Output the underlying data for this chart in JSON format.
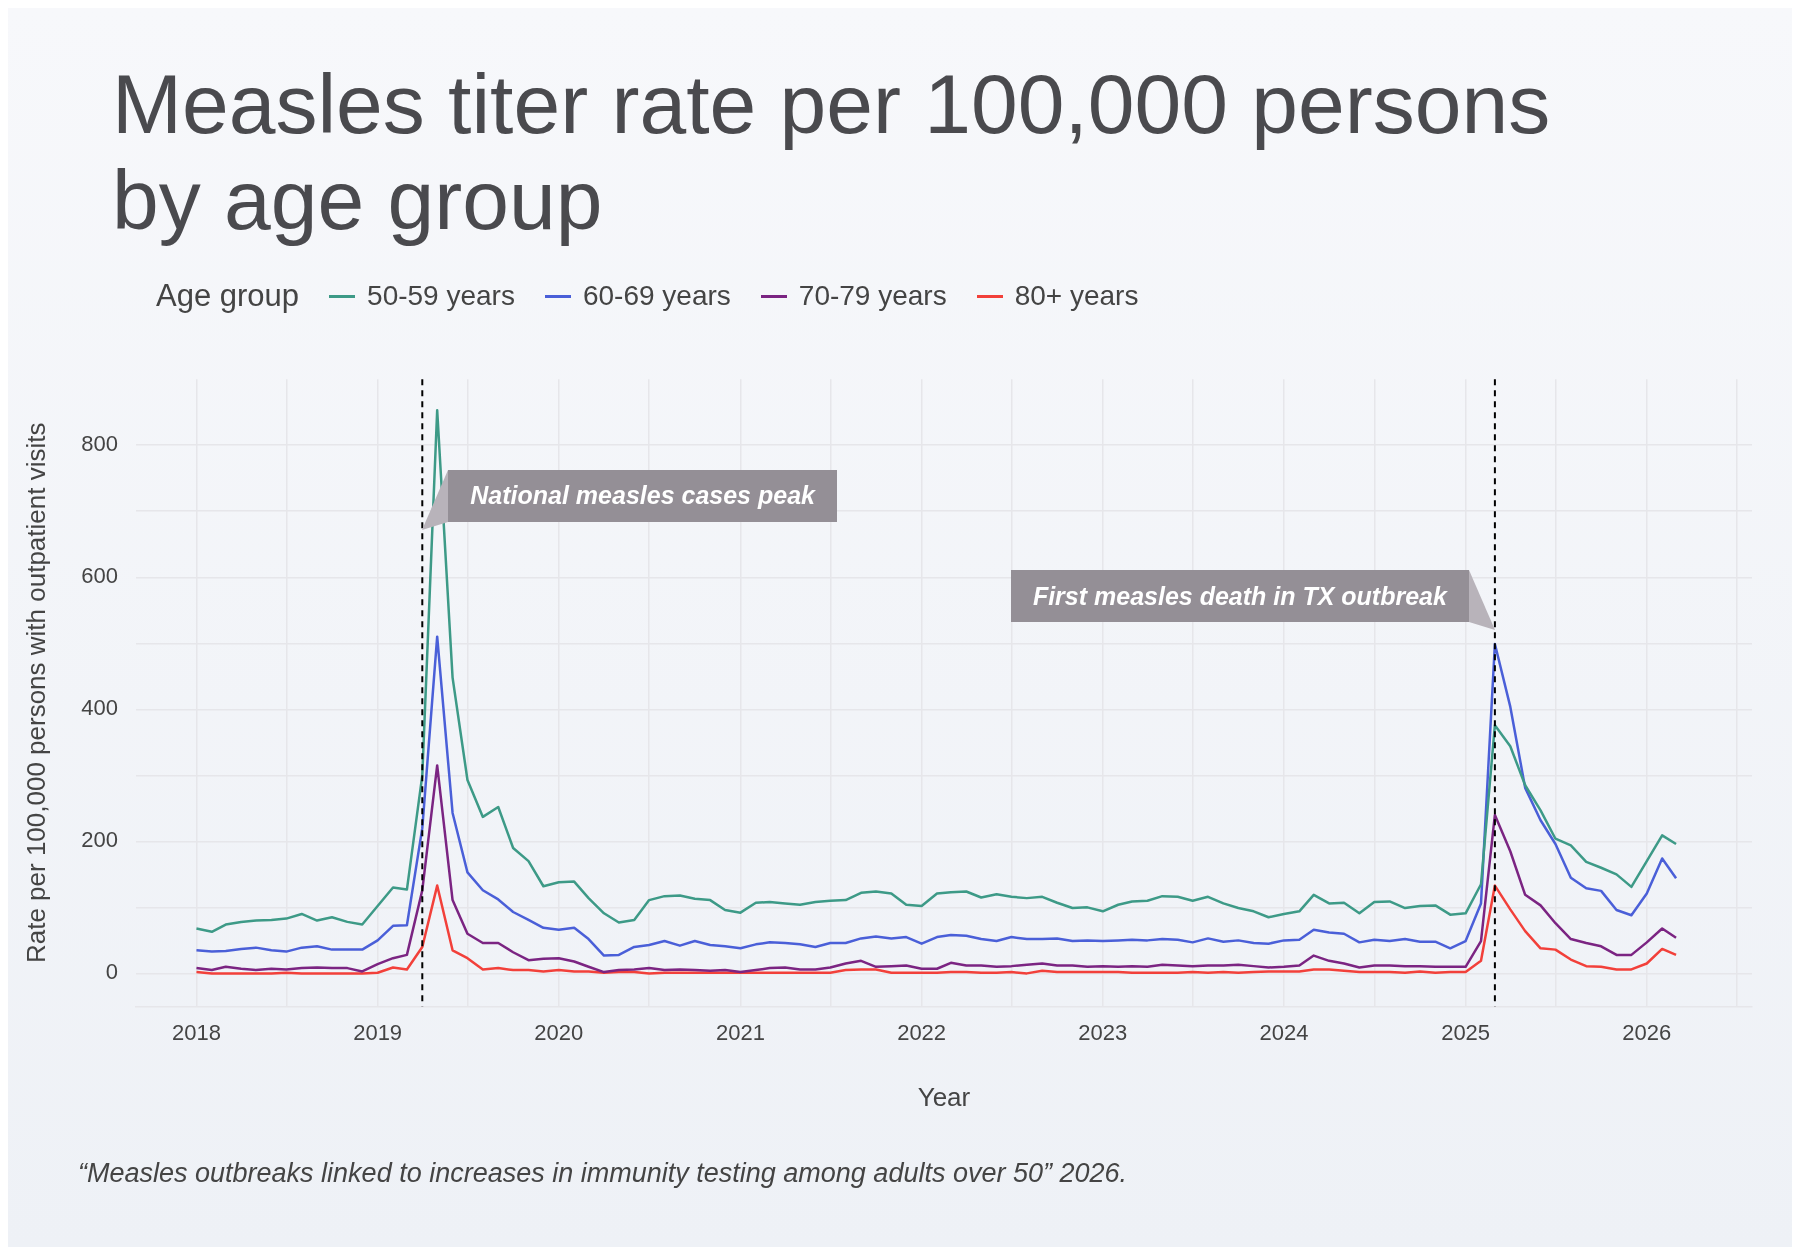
{
  "chart_data": {
    "type": "line",
    "title": "Measles titer rate per 100,000 persons by age group",
    "xlabel": "Year",
    "ylabel": "Rate per 100,000 persons with outpatient visits",
    "legend_title": "Age group",
    "legend": "top left",
    "grid": true,
    "line_style": "solid",
    "marker": "none",
    "x": [
      "2018-01",
      "2018-02",
      "2018-03",
      "2018-04",
      "2018-05",
      "2018-06",
      "2018-07",
      "2018-08",
      "2018-09",
      "2018-10",
      "2018-11",
      "2018-12",
      "2019-01",
      "2019-02",
      "2019-03",
      "2019-04",
      "2019-05",
      "2019-06",
      "2019-07",
      "2019-08",
      "2019-09",
      "2019-10",
      "2019-11",
      "2019-12",
      "2020-01",
      "2020-02",
      "2020-03",
      "2020-04",
      "2020-05",
      "2020-06",
      "2020-07",
      "2020-08",
      "2020-09",
      "2020-10",
      "2020-11",
      "2020-12",
      "2021-01",
      "2021-02",
      "2021-03",
      "2021-04",
      "2021-05",
      "2021-06",
      "2021-07",
      "2021-08",
      "2021-09",
      "2021-10",
      "2021-11",
      "2021-12",
      "2022-01",
      "2022-02",
      "2022-03",
      "2022-04",
      "2022-05",
      "2022-06",
      "2022-07",
      "2022-08",
      "2022-09",
      "2022-10",
      "2022-11",
      "2022-12",
      "2023-01",
      "2023-02",
      "2023-03",
      "2023-04",
      "2023-05",
      "2023-06",
      "2023-07",
      "2023-08",
      "2023-09",
      "2023-10",
      "2023-11",
      "2023-12",
      "2024-01",
      "2024-02",
      "2024-03",
      "2024-04",
      "2024-05",
      "2024-06",
      "2024-07",
      "2024-08",
      "2024-09",
      "2024-10",
      "2024-11",
      "2024-12",
      "2025-01",
      "2025-02",
      "2025-03",
      "2025-04",
      "2025-05",
      "2025-06",
      "2025-07",
      "2025-08",
      "2025-09",
      "2025-10",
      "2025-11",
      "2025-12",
      "2026-01",
      "2026-02",
      "2026-03"
    ],
    "series": [
      {
        "name": "50-59 years",
        "color": "#3d9a87",
        "values": [
          68,
          63,
          74,
          78,
          80,
          81,
          83,
          90,
          80,
          85,
          78,
          74,
          102,
          130,
          127,
          300,
          853,
          448,
          293,
          237,
          252,
          190,
          170,
          132,
          138,
          139,
          114,
          91,
          77,
          81,
          111,
          117,
          118,
          113,
          111,
          96,
          92,
          107,
          108,
          106,
          104,
          108,
          110,
          111,
          122,
          124,
          121,
          104,
          102,
          121,
          123,
          124,
          115,
          120,
          116,
          114,
          116,
          107,
          99,
          100,
          94,
          104,
          109,
          110,
          117,
          116,
          110,
          116,
          106,
          99,
          94,
          85,
          90,
          94,
          119,
          106,
          107,
          91,
          108,
          109,
          99,
          102,
          103,
          89,
          91,
          135,
          376,
          344,
          285,
          247,
          204,
          194,
          169,
          160,
          150,
          131,
          170,
          209,
          196
        ]
      },
      {
        "name": "60-69 years",
        "color": "#4a5fd8",
        "values": [
          35,
          33,
          34,
          37,
          39,
          35,
          33,
          39,
          41,
          36,
          36,
          36,
          50,
          72,
          73,
          220,
          510,
          243,
          153,
          126,
          112,
          93,
          81,
          69,
          66,
          69,
          52,
          27,
          28,
          40,
          43,
          49,
          42,
          49,
          43,
          41,
          38,
          44,
          47,
          46,
          44,
          40,
          46,
          46,
          53,
          56,
          53,
          55,
          45,
          55,
          58,
          57,
          52,
          49,
          55,
          52,
          52,
          53,
          49,
          50,
          49,
          50,
          51,
          50,
          52,
          51,
          47,
          53,
          48,
          50,
          46,
          45,
          50,
          51,
          66,
          62,
          60,
          47,
          51,
          49,
          52,
          48,
          48,
          38,
          49,
          106,
          499,
          404,
          281,
          232,
          196,
          145,
          129,
          125,
          96,
          88,
          121,
          174,
          144
        ]
      },
      {
        "name": "70-79 years",
        "color": "#7b2482",
        "values": [
          8,
          5,
          10,
          7,
          5,
          7,
          6,
          8,
          9,
          8,
          8,
          3,
          14,
          23,
          28,
          126,
          315,
          111,
          60,
          46,
          46,
          32,
          20,
          22,
          23,
          18,
          10,
          2,
          5,
          6,
          8,
          5,
          6,
          5,
          4,
          5,
          2,
          5,
          8,
          9,
          6,
          6,
          9,
          15,
          19,
          10,
          11,
          12,
          7,
          7,
          16,
          12,
          12,
          10,
          11,
          13,
          15,
          12,
          12,
          10,
          11,
          10,
          11,
          10,
          13,
          12,
          11,
          12,
          12,
          13,
          11,
          9,
          10,
          12,
          27,
          19,
          15,
          9,
          12,
          12,
          11,
          11,
          10,
          10,
          10,
          49,
          240,
          185,
          119,
          103,
          76,
          52,
          46,
          41,
          28,
          28,
          47,
          68,
          54
        ]
      },
      {
        "name": "80+ years",
        "color": "#f2403a",
        "values": [
          2,
          0,
          0,
          0,
          0,
          0,
          1,
          0,
          0,
          0,
          0,
          0,
          1,
          9,
          6,
          40,
          133,
          35,
          23,
          6,
          8,
          5,
          5,
          3,
          5,
          3,
          3,
          1,
          2,
          2,
          0,
          1,
          1,
          1,
          1,
          1,
          1,
          1,
          1,
          1,
          1,
          1,
          1,
          5,
          6,
          6,
          1,
          1,
          1,
          1,
          2,
          2,
          1,
          1,
          2,
          0,
          4,
          2,
          2,
          2,
          2,
          2,
          1,
          1,
          1,
          1,
          2,
          1,
          2,
          1,
          2,
          3,
          3,
          3,
          6,
          6,
          4,
          2,
          2,
          2,
          1,
          3,
          1,
          2,
          2,
          19,
          133,
          97,
          64,
          38,
          36,
          21,
          11,
          10,
          6,
          6,
          15,
          37,
          28
        ]
      }
    ],
    "xlim": [
      "2017-09",
      "2026-08"
    ],
    "xticks": [
      {
        "value": "2018",
        "label": "2018"
      },
      {
        "value": "2018-07",
        "label": null
      },
      {
        "value": "2019",
        "label": "2019"
      },
      {
        "value": "2019-07",
        "label": null
      },
      {
        "value": "2020",
        "label": "2020"
      },
      {
        "value": "2020-07",
        "label": null
      },
      {
        "value": "2021",
        "label": "2021"
      },
      {
        "value": "2021-07",
        "label": null
      },
      {
        "value": "2022",
        "label": "2022"
      },
      {
        "value": "2022-07",
        "label": null
      },
      {
        "value": "2023",
        "label": "2023"
      },
      {
        "value": "2023-07",
        "label": null
      },
      {
        "value": "2024",
        "label": "2024"
      },
      {
        "value": "2024-07",
        "label": null
      },
      {
        "value": "2025",
        "label": "2025"
      },
      {
        "value": "2025-07",
        "label": null
      },
      {
        "value": "2026",
        "label": "2026"
      },
      {
        "value": "2026-07",
        "label": null
      }
    ],
    "ylim": [
      -50,
      900
    ],
    "yticks": [
      0,
      {
        "value": 100,
        "label": null
      },
      200,
      {
        "value": 300,
        "label": null
      },
      400,
      {
        "value": 500,
        "label": null
      },
      600,
      {
        "value": 700,
        "label": null
      },
      800
    ],
    "ref_lines": [
      {
        "axis": "x",
        "value": "2019-04",
        "color": "#000000",
        "line_style": "dashed",
        "label": "National measles cases peak"
      },
      {
        "axis": "x",
        "value": "2025-03",
        "color": "#000000",
        "line_style": "dashed",
        "label": "First measles death in TX outbreak"
      }
    ],
    "annotations": [
      "“Measles outbreaks linked to increases in immunity testing among adults over 50” 2026."
    ]
  }
}
